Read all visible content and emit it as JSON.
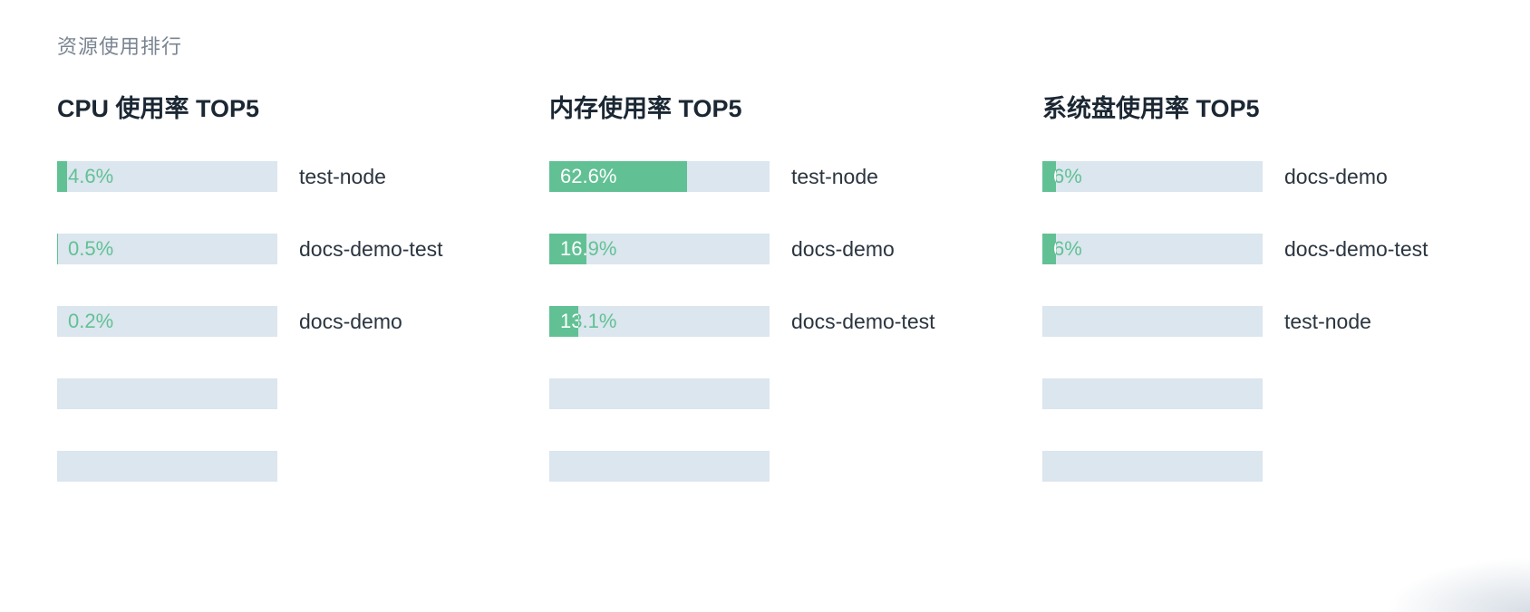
{
  "card": {
    "title": "资源使用排行"
  },
  "colors": {
    "fill": "#62c194",
    "track": "#dbe6ee",
    "title": "#1b2733",
    "muted": "#7a8591"
  },
  "columns": [
    {
      "key": "cpu",
      "title": "CPU 使用率 TOP5",
      "rows": [
        {
          "percent_label": "4.6%",
          "value": 4.6,
          "node": "test-node"
        },
        {
          "percent_label": "0.5%",
          "value": 0.5,
          "node": "docs-demo-test"
        },
        {
          "percent_label": "0.2%",
          "value": 0.2,
          "node": "docs-demo"
        },
        {
          "percent_label": "",
          "value": 0,
          "node": ""
        },
        {
          "percent_label": "",
          "value": 0,
          "node": ""
        }
      ]
    },
    {
      "key": "memory",
      "title": "内存使用率 TOP5",
      "rows": [
        {
          "percent_label": "62.6%",
          "value": 62.6,
          "node": "test-node"
        },
        {
          "percent_label": "16.9%",
          "value": 16.9,
          "node": "docs-demo"
        },
        {
          "percent_label": "13.1%",
          "value": 13.1,
          "node": "docs-demo-test"
        },
        {
          "percent_label": "",
          "value": 0,
          "node": ""
        },
        {
          "percent_label": "",
          "value": 0,
          "node": ""
        }
      ]
    },
    {
      "key": "disk",
      "title": "系统盘使用率 TOP5",
      "rows": [
        {
          "percent_label": "6%",
          "value": 6,
          "node": "docs-demo"
        },
        {
          "percent_label": "6%",
          "value": 6,
          "node": "docs-demo-test"
        },
        {
          "percent_label": "",
          "value": 0,
          "node": "test-node"
        },
        {
          "percent_label": "",
          "value": 0,
          "node": ""
        },
        {
          "percent_label": "",
          "value": 0,
          "node": ""
        }
      ]
    }
  ]
}
